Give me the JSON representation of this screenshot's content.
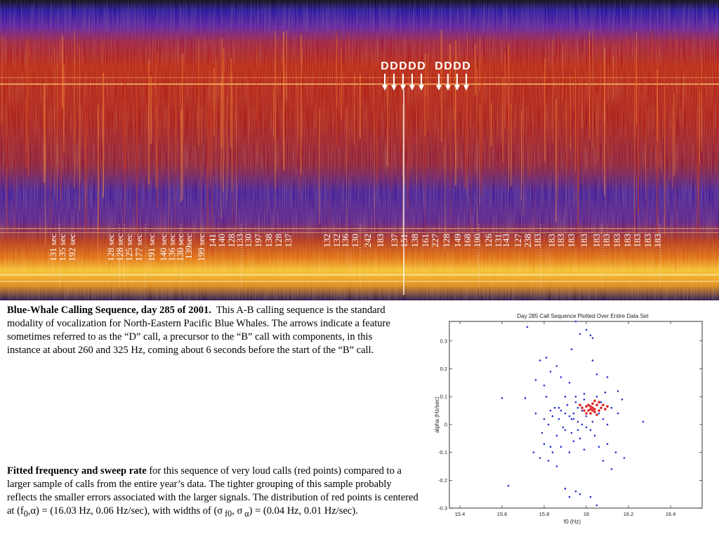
{
  "spectrogram": {
    "d_markers": [
      "D",
      "D",
      "D",
      "D",
      "D",
      "D",
      "D",
      "D",
      "D"
    ],
    "interval_labels": [
      "131 sec",
      "135 sec",
      "192 sec",
      "128 sec",
      "128 sec",
      "125 sec",
      "177 sec",
      "191 sec",
      "140 sec",
      "136 sec",
      "130 sec",
      "139sec",
      "199 sec",
      "141",
      "140",
      "128",
      "133",
      "130",
      "197",
      "138",
      "128",
      "137",
      "132",
      "132",
      "136",
      "130",
      "242",
      "183",
      "137",
      "151",
      "138",
      "161",
      "227",
      "128",
      "149",
      "168",
      "190",
      "126",
      "131",
      "143",
      "127",
      "238",
      "183",
      "183",
      "183",
      "183",
      "183",
      "183",
      "183",
      "183",
      "183",
      "183",
      "183",
      "183"
    ]
  },
  "caption1": {
    "bold": "Blue-Whale Calling Sequence, day 285 of 2001.",
    "text": "This A-B calling sequence is the standard modality of vocalization for North-Eastern Pacific Blue Whales. The arrows indicate a feature sometimes referred to as the “D” call, a precursor to the “B” call with components, in this instance at about 260 and 325 Hz, coming about 6 seconds before the start of the “B” call."
  },
  "caption2": {
    "bold": "Fitted frequency and sweep rate",
    "text": "for this sequence of very loud calls (red points) compared to a larger sample of calls from the entire year’s data. The tighter grouping of this sample probably reflects the smaller errors associated with the larger signals. The distribution of red points is centered at (f",
    "sub_f0": "0",
    "text_b": ",α) = (16.03 Hz, 0.06 Hz/sec), with widths of (σ",
    "sub_sf0": " f0",
    "text_c": ", σ",
    "sub_sa": " α",
    "text_d": ") = (0.04 Hz, 0.01 Hz/sec)."
  },
  "chart_data": {
    "type": "scatter",
    "title": "Day 285 Call Sequence Plotted Over Entire Data Set",
    "xlabel": "f0 (Hz)",
    "ylabel": "alpha (Hz/sec)",
    "xlim": [
      15.35,
      16.55
    ],
    "ylim": [
      -0.3,
      0.37
    ],
    "xticks": [
      "15.4",
      "15.6",
      "15.8",
      "16",
      "16.2",
      "16.4"
    ],
    "yticks": [
      "0.3",
      "0.2",
      "0.1",
      "0",
      "-0.1",
      "-0.2",
      "-0.3"
    ],
    "series": [
      {
        "color": "#2233cc",
        "points": [
          [
            15.95,
            0.37
          ],
          [
            15.72,
            0.35
          ],
          [
            16.0,
            0.34
          ],
          [
            15.97,
            0.325
          ],
          [
            16.02,
            0.32
          ],
          [
            16.03,
            0.31
          ],
          [
            15.93,
            0.27
          ],
          [
            16.03,
            0.23
          ],
          [
            15.81,
            0.24
          ],
          [
            15.78,
            0.23
          ],
          [
            15.86,
            0.21
          ],
          [
            15.83,
            0.19
          ],
          [
            15.76,
            0.16
          ],
          [
            15.88,
            0.17
          ],
          [
            16.05,
            0.18
          ],
          [
            16.1,
            0.17
          ],
          [
            15.92,
            0.15
          ],
          [
            15.8,
            0.14
          ],
          [
            16.15,
            0.12
          ],
          [
            16.09,
            0.115
          ],
          [
            15.81,
            0.1
          ],
          [
            15.71,
            0.095
          ],
          [
            16.17,
            0.09
          ],
          [
            15.6,
            0.095
          ],
          [
            15.85,
            0.06
          ],
          [
            15.88,
            0.05
          ],
          [
            15.9,
            0.04
          ],
          [
            15.92,
            0.03
          ],
          [
            15.94,
            0.02
          ],
          [
            15.96,
            0.01
          ],
          [
            15.98,
            0.0
          ],
          [
            16.0,
            -0.01
          ],
          [
            16.02,
            -0.02
          ],
          [
            15.93,
            -0.03
          ],
          [
            15.89,
            -0.01
          ],
          [
            15.87,
            0.02
          ],
          [
            15.91,
            0.07
          ],
          [
            15.95,
            0.08
          ],
          [
            15.99,
            0.09
          ],
          [
            16.06,
            0.04
          ],
          [
            16.08,
            0.02
          ],
          [
            16.1,
            0.0
          ],
          [
            16.04,
            -0.04
          ],
          [
            15.97,
            -0.05
          ],
          [
            15.94,
            -0.06
          ],
          [
            15.86,
            -0.04
          ],
          [
            15.84,
            0.03
          ],
          [
            15.82,
            0.0
          ],
          [
            15.79,
            -0.03
          ],
          [
            15.8,
            -0.07
          ],
          [
            15.83,
            -0.08
          ],
          [
            15.88,
            -0.08
          ],
          [
            15.92,
            -0.1
          ],
          [
            15.99,
            -0.09
          ],
          [
            16.06,
            -0.08
          ],
          [
            16.1,
            -0.07
          ],
          [
            16.14,
            -0.1
          ],
          [
            16.08,
            -0.13
          ],
          [
            15.82,
            -0.13
          ],
          [
            15.84,
            -0.1
          ],
          [
            15.75,
            -0.1
          ],
          [
            15.78,
            -0.12
          ],
          [
            16.12,
            -0.16
          ],
          [
            16.18,
            -0.12
          ],
          [
            16.27,
            0.01
          ],
          [
            15.86,
            -0.15
          ],
          [
            15.63,
            -0.22
          ],
          [
            15.95,
            -0.24
          ],
          [
            15.9,
            -0.23
          ],
          [
            15.92,
            -0.26
          ],
          [
            15.97,
            -0.25
          ],
          [
            16.02,
            -0.26
          ],
          [
            16.05,
            -0.29
          ],
          [
            15.98,
            0.05
          ],
          [
            15.96,
            0.06
          ],
          [
            16.01,
            0.07
          ],
          [
            15.93,
            0.02
          ],
          [
            15.9,
            -0.02
          ],
          [
            15.96,
            -0.02
          ],
          [
            16.0,
            0.03
          ],
          [
            16.03,
            0.01
          ],
          [
            15.94,
            0.04
          ],
          [
            15.87,
            0.06
          ],
          [
            15.83,
            0.05
          ],
          [
            15.76,
            0.04
          ],
          [
            15.8,
            0.02
          ],
          [
            16.07,
            0.08
          ],
          [
            16.12,
            0.06
          ],
          [
            16.15,
            0.04
          ],
          [
            15.99,
            0.11
          ],
          [
            15.95,
            0.1
          ],
          [
            15.9,
            0.1
          ],
          [
            16.05,
            0.1
          ]
        ]
      },
      {
        "color": "#dd2222",
        "points": [
          [
            16.03,
            0.06
          ],
          [
            16.01,
            0.05
          ],
          [
            16.05,
            0.07
          ],
          [
            16.02,
            0.04
          ],
          [
            16.04,
            0.055
          ],
          [
            16.0,
            0.065
          ],
          [
            16.06,
            0.05
          ],
          [
            16.03,
            0.075
          ],
          [
            15.99,
            0.05
          ],
          [
            16.07,
            0.06
          ],
          [
            16.02,
            0.065
          ],
          [
            16.04,
            0.045
          ],
          [
            16.05,
            0.035
          ],
          [
            16.01,
            0.07
          ],
          [
            16.08,
            0.07
          ],
          [
            16.06,
            0.08
          ],
          [
            15.98,
            0.06
          ],
          [
            16.0,
            0.04
          ],
          [
            16.03,
            0.05
          ],
          [
            16.09,
            0.055
          ],
          [
            16.1,
            0.065
          ],
          [
            15.97,
            0.07
          ],
          [
            16.04,
            0.085
          ],
          [
            16.02,
            0.055
          ]
        ]
      }
    ]
  }
}
